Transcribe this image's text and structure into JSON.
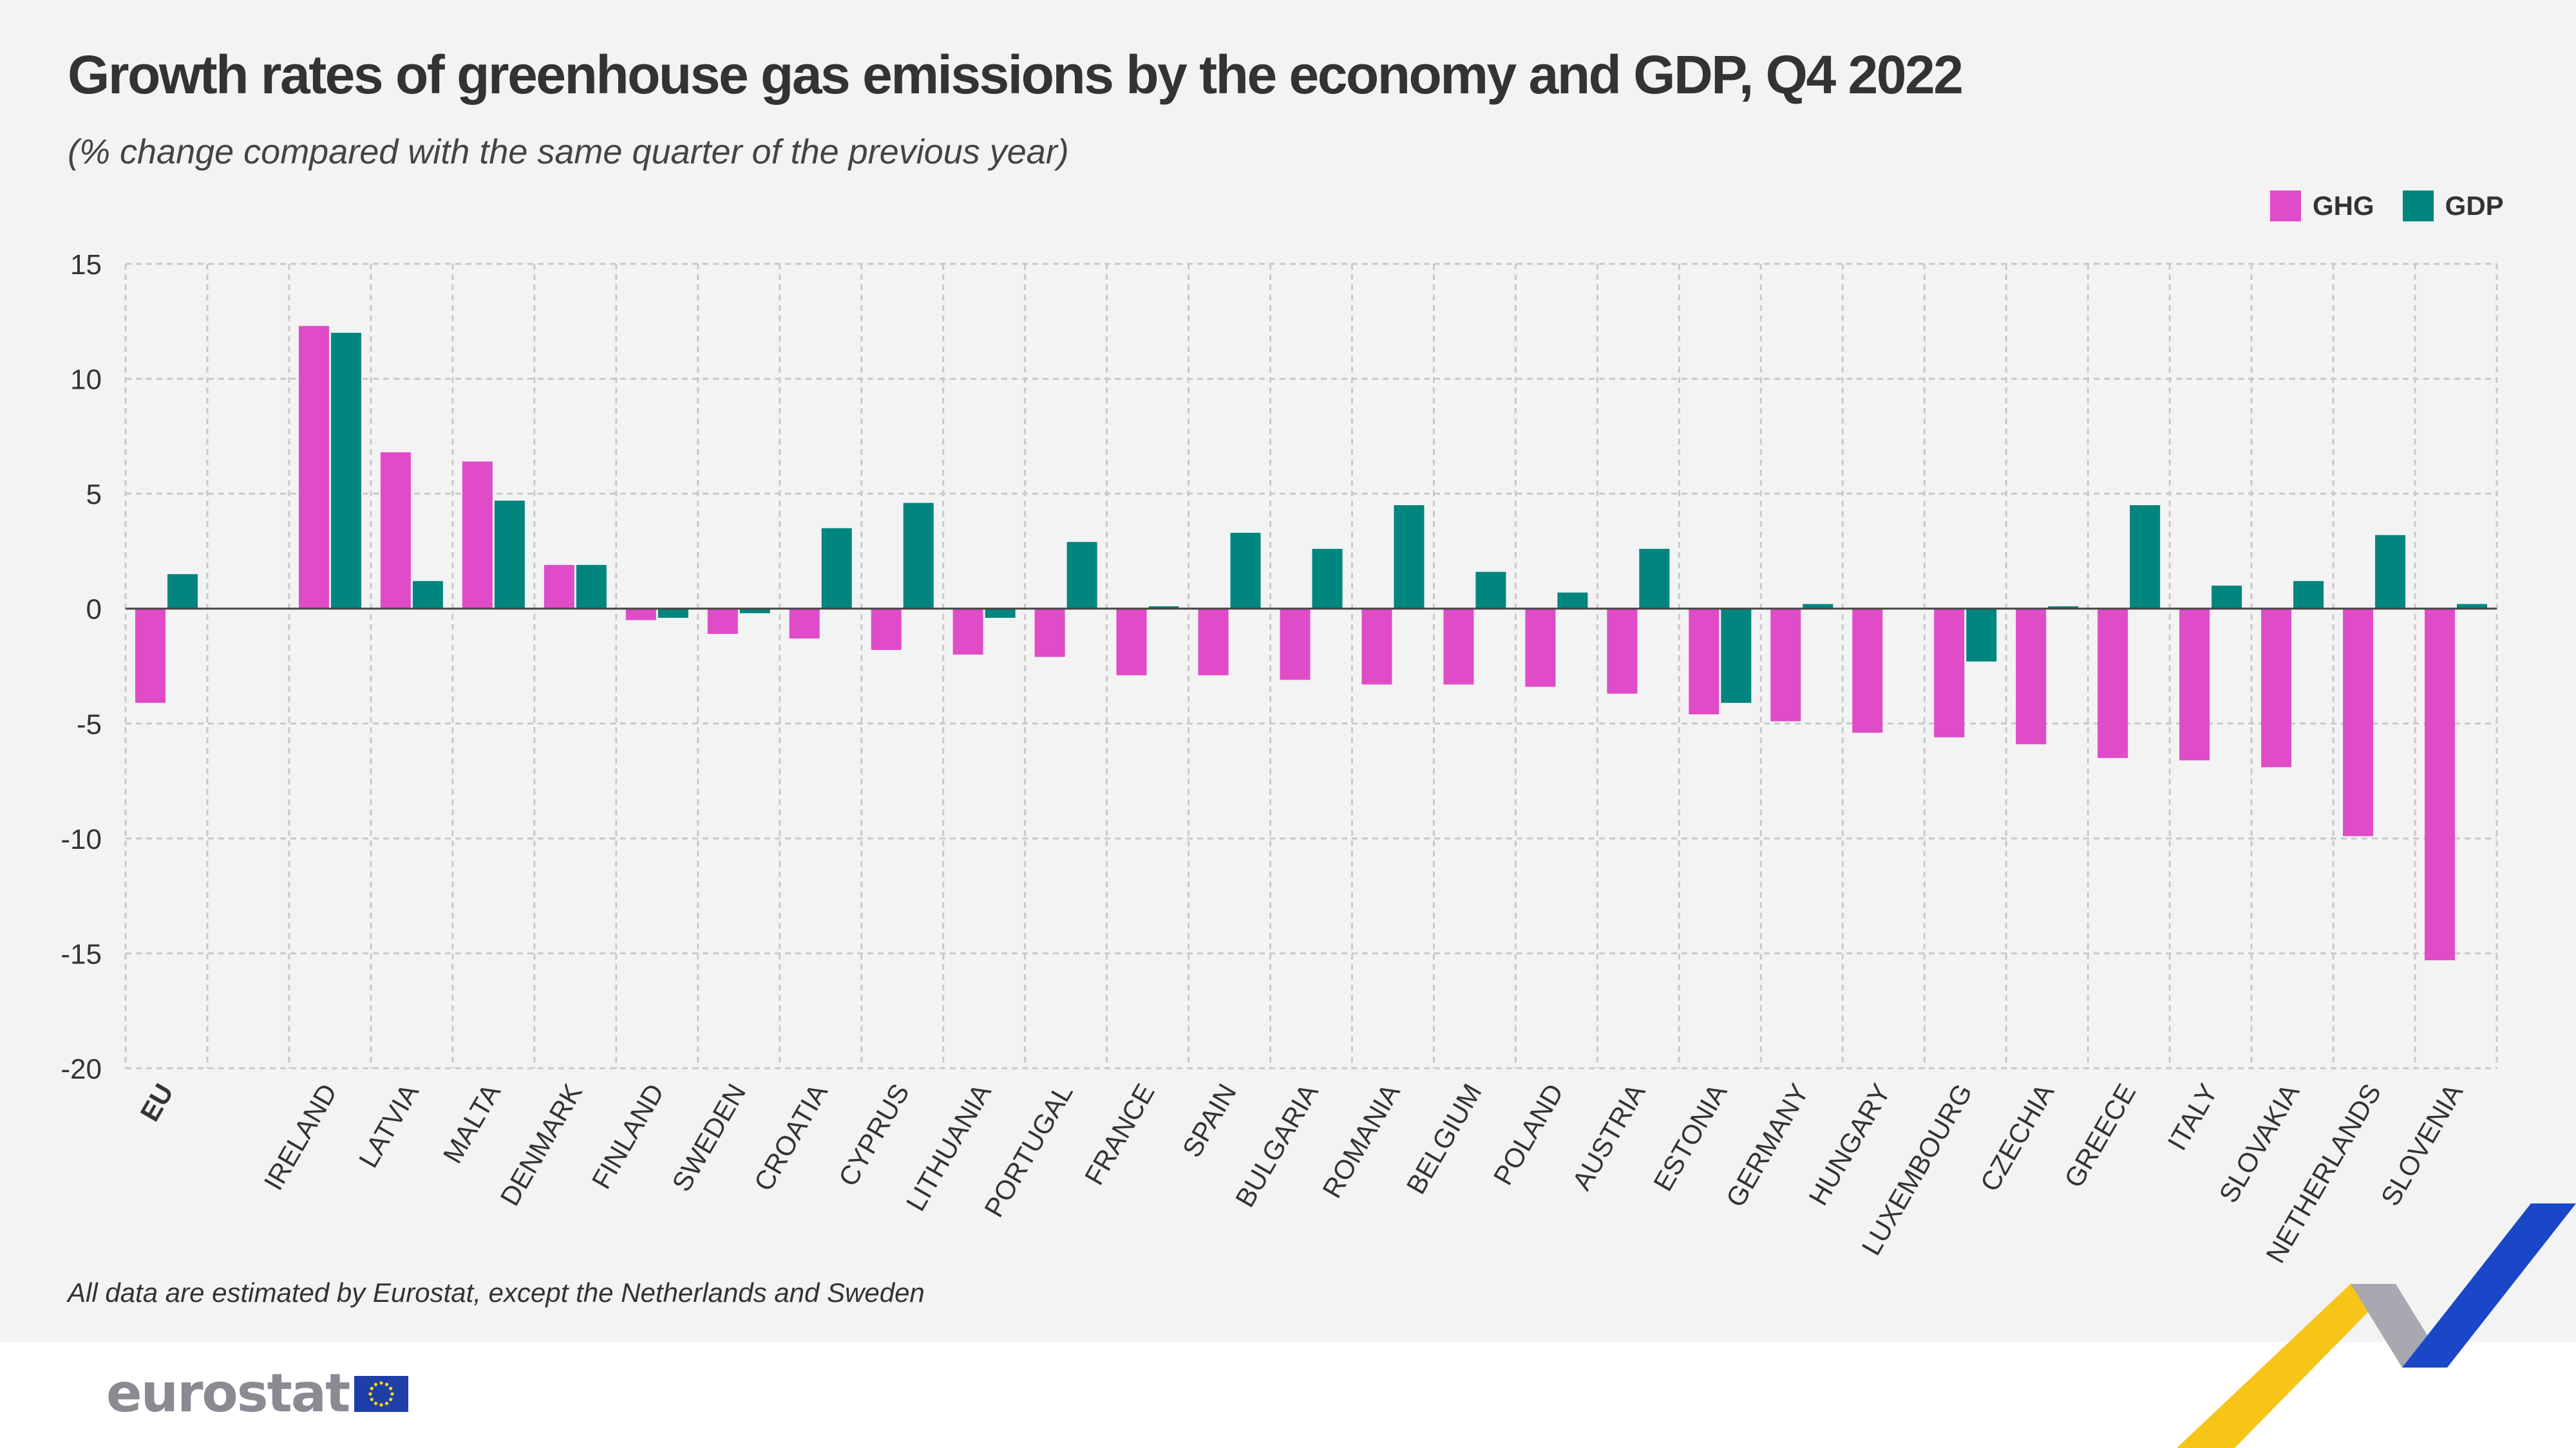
{
  "header": {
    "title": "Growth rates of greenhouse gas emissions by the economy and GDP, Q4 2022",
    "subtitle": "(% change compared with the same quarter of the previous year)"
  },
  "legend": [
    {
      "label": "GHG",
      "color": "#e04bc8"
    },
    {
      "label": "GDP",
      "color": "#00857f"
    }
  ],
  "chart_data": {
    "type": "bar",
    "title": "Growth rates of greenhouse gas emissions by the economy and GDP, Q4 2022",
    "subtitle": "(% change compared with the same quarter of the previous year)",
    "xlabel": "",
    "ylabel": "",
    "ylim": [
      -20,
      15
    ],
    "yticks": [
      15,
      10,
      5,
      0,
      -5,
      -10,
      -15,
      -20
    ],
    "grid": true,
    "legend_position": "top-right",
    "slots": [
      "EU",
      "",
      "IRELAND",
      "LATVIA",
      "MALTA",
      "DENMARK",
      "FINLAND",
      "SWEDEN",
      "CROATIA",
      "CYPRUS",
      "LITHUANIA",
      "PORTUGAL",
      "FRANCE",
      "SPAIN",
      "BULGARIA",
      "ROMANIA",
      "BELGIUM",
      "POLAND",
      "AUSTRIA",
      "ESTONIA",
      "GERMANY",
      "HUNGARY",
      "LUXEMBOURG",
      "CZECHIA",
      "GREECE",
      "ITALY",
      "SLOVAKIA",
      "NETHERLANDS",
      "SLOVENIA"
    ],
    "categories": [
      "EU",
      "IRELAND",
      "LATVIA",
      "MALTA",
      "DENMARK",
      "FINLAND",
      "SWEDEN",
      "CROATIA",
      "CYPRUS",
      "LITHUANIA",
      "PORTUGAL",
      "FRANCE",
      "SPAIN",
      "BULGARIA",
      "ROMANIA",
      "BELGIUM",
      "POLAND",
      "AUSTRIA",
      "ESTONIA",
      "GERMANY",
      "HUNGARY",
      "LUXEMBOURG",
      "CZECHIA",
      "GREECE",
      "ITALY",
      "SLOVAKIA",
      "NETHERLANDS",
      "SLOVENIA"
    ],
    "series": [
      {
        "name": "GHG",
        "color": "#e04bc8",
        "values": [
          -4.1,
          12.3,
          6.8,
          6.4,
          1.9,
          -0.5,
          -1.1,
          -1.3,
          -1.8,
          -2.0,
          -2.1,
          -2.9,
          -2.9,
          -3.1,
          -3.3,
          -3.3,
          -3.4,
          -3.7,
          -4.6,
          -4.9,
          -5.4,
          -5.6,
          -5.9,
          -6.5,
          -6.6,
          -6.9,
          -9.9,
          -15.3
        ]
      },
      {
        "name": "GDP",
        "color": "#00857f",
        "values": [
          1.5,
          12.0,
          1.2,
          4.7,
          1.9,
          -0.4,
          -0.2,
          3.5,
          4.6,
          -0.4,
          2.9,
          0.1,
          3.3,
          2.6,
          4.5,
          1.6,
          0.7,
          2.6,
          -4.1,
          0.2,
          0.0,
          -2.3,
          0.1,
          4.5,
          1.0,
          1.2,
          3.2,
          0.2
        ]
      }
    ]
  },
  "footnote": "All data are estimated by Eurostat, except the Netherlands and Sweden",
  "logo": {
    "text": "eurostat"
  }
}
